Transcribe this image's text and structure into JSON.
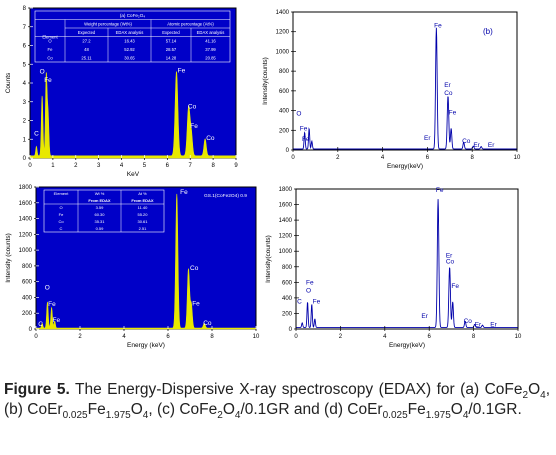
{
  "chart_data": [
    {
      "type": "area",
      "id": "a",
      "panel_label": "",
      "xlabel": "KeV",
      "ylabel": "Counts",
      "xlim": [
        0,
        9
      ],
      "ylim": [
        0,
        8
      ],
      "xticks": [
        "0",
        "1",
        "2",
        "3",
        "4",
        "5",
        "6",
        "7",
        "8",
        "9"
      ],
      "yticks": [
        "0",
        "1",
        "2",
        "3",
        "4",
        "5",
        "6",
        "7",
        "8"
      ],
      "background": "#0000c8",
      "fill_color": "#e8e800",
      "axis_color": "#ffffff",
      "peaks": [
        [
          0.28,
          0.5,
          0.03
        ],
        [
          0.53,
          3.2,
          0.035
        ],
        [
          0.71,
          4.3,
          0.035
        ],
        [
          0.79,
          2.2,
          0.035
        ],
        [
          6.4,
          4.5,
          0.06
        ],
        [
          6.93,
          2.6,
          0.06
        ],
        [
          7.05,
          1.1,
          0.05
        ],
        [
          7.65,
          0.9,
          0.05
        ]
      ],
      "baseline": 0.12,
      "peak_labels": [
        {
          "text": "C",
          "x": 0.18,
          "y": 1.2
        },
        {
          "text": "O",
          "x": 0.42,
          "y": 4.5
        },
        {
          "text": "Fe",
          "x": 0.62,
          "y": 4.05
        },
        {
          "text": "Fe",
          "x": 6.45,
          "y": 4.55
        },
        {
          "text": "Co",
          "x": 6.9,
          "y": 2.65
        },
        {
          "text": "Fe",
          "x": 7.0,
          "y": 1.6
        },
        {
          "text": "Co",
          "x": 7.7,
          "y": 0.95
        }
      ],
      "table": {
        "title": "(a) CoFe₂O₄",
        "groups": [
          "Weight percentage (Wt%)",
          "Atomic percentage (At%)"
        ],
        "headers": [
          "Element",
          "Expected",
          "EDAX analysis",
          "Expected",
          "EDAX analysis"
        ],
        "rows": [
          [
            "O",
            "27.2",
            "16.43",
            "57.14",
            "41.16"
          ],
          [
            "Fe",
            "48",
            "52.92",
            "28.57",
            "37.99"
          ],
          [
            "Co",
            "25.11",
            "30.65",
            "14.28",
            "20.85"
          ]
        ]
      }
    },
    {
      "type": "line",
      "id": "b",
      "panel_label": "(b)",
      "xlabel": "Energy(keV)",
      "ylabel": "Intensity(counts)",
      "xlim": [
        0,
        10
      ],
      "ylim": [
        0,
        1400
      ],
      "xticks": [
        "0",
        "2",
        "4",
        "6",
        "8",
        "10"
      ],
      "yticks": [
        "0",
        "200",
        "400",
        "600",
        "800",
        "1000",
        "1200",
        "1400"
      ],
      "background": "#ffffff",
      "line_color": "#0000aa",
      "peaks": [
        [
          0.52,
          170,
          0.025
        ],
        [
          0.72,
          210,
          0.025
        ],
        [
          0.84,
          80,
          0.025
        ],
        [
          6.4,
          1230,
          0.035
        ],
        [
          6.92,
          540,
          0.035
        ],
        [
          7.06,
          210,
          0.03
        ],
        [
          7.62,
          70,
          0.03
        ],
        [
          8.05,
          30,
          0.03
        ],
        [
          8.4,
          25,
          0.03
        ]
      ],
      "baseline": 10,
      "peak_labels": [
        {
          "text": "O",
          "x": 0.15,
          "y": 350
        },
        {
          "text": "Fe",
          "x": 0.3,
          "y": 200
        },
        {
          "text": "Fe",
          "x": 0.4,
          "y": 90
        },
        {
          "text": "Fe",
          "x": 6.3,
          "y": 1245
        },
        {
          "text": "Er",
          "x": 6.75,
          "y": 640
        },
        {
          "text": "Co",
          "x": 6.75,
          "y": 560
        },
        {
          "text": "Fe",
          "x": 6.95,
          "y": 360
        },
        {
          "text": "Er",
          "x": 5.85,
          "y": 100
        },
        {
          "text": "Co",
          "x": 7.55,
          "y": 70
        },
        {
          "text": "Er",
          "x": 8.05,
          "y": 30
        },
        {
          "text": "Er",
          "x": 8.7,
          "y": 30
        }
      ]
    },
    {
      "type": "area",
      "id": "c",
      "panel_label": "GS.1(CoFe2O4) 0.9",
      "xlabel": "Energy (keV)",
      "ylabel": "Intensity (counts)",
      "xlim": [
        0,
        10
      ],
      "ylim": [
        0,
        1800
      ],
      "xticks": [
        "0",
        "2",
        "4",
        "6",
        "8",
        "10"
      ],
      "yticks": [
        "0",
        "200",
        "400",
        "600",
        "800",
        "1000",
        "1200",
        "1400",
        "1600",
        "1800"
      ],
      "background": "#0000c8",
      "fill_color": "#e8e800",
      "axis_color": "#ffffff",
      "peaks": [
        [
          0.28,
          60,
          0.03
        ],
        [
          0.52,
          330,
          0.035
        ],
        [
          0.71,
          260,
          0.035
        ],
        [
          0.85,
          90,
          0.03
        ],
        [
          6.4,
          1700,
          0.05
        ],
        [
          6.93,
          750,
          0.05
        ],
        [
          7.06,
          300,
          0.045
        ],
        [
          7.65,
          60,
          0.045
        ]
      ],
      "baseline": 12,
      "peak_labels": [
        {
          "text": "C",
          "x": 0.1,
          "y": 40
        },
        {
          "text": "O",
          "x": 0.4,
          "y": 500
        },
        {
          "text": "Fe",
          "x": 0.55,
          "y": 290
        },
        {
          "text": "Fe",
          "x": 0.75,
          "y": 90
        },
        {
          "text": "Fe",
          "x": 6.55,
          "y": 1710
        },
        {
          "text": "Co",
          "x": 7.0,
          "y": 750
        },
        {
          "text": "Fe",
          "x": 7.1,
          "y": 300
        },
        {
          "text": "Co",
          "x": 7.6,
          "y": 50
        }
      ],
      "table": {
        "title": "",
        "groups": [
          "Wt %",
          "At %"
        ],
        "headers": [
          "Element",
          "From EDAX",
          "From EDAX"
        ],
        "rows": [
          [
            "O",
            "3.59",
            "11.40"
          ],
          [
            "Fe",
            "60.30",
            "55.20"
          ],
          [
            "Co",
            "35.31",
            "30.61"
          ],
          [
            "C",
            "0.59",
            "2.51"
          ]
        ]
      }
    },
    {
      "type": "line",
      "id": "d",
      "panel_label": "",
      "xlabel": "Energy(keV)",
      "ylabel": "Intensity(counts)",
      "xlim": [
        0,
        10
      ],
      "ylim": [
        0,
        1800
      ],
      "xticks": [
        "0",
        "2",
        "4",
        "6",
        "8",
        "10"
      ],
      "yticks": [
        "0",
        "200",
        "400",
        "600",
        "800",
        "1000",
        "1200",
        "1400",
        "1600",
        "1800"
      ],
      "background": "#ffffff",
      "line_color": "#0000aa",
      "peaks": [
        [
          0.28,
          60,
          0.025
        ],
        [
          0.52,
          330,
          0.025
        ],
        [
          0.71,
          300,
          0.025
        ],
        [
          0.85,
          110,
          0.025
        ],
        [
          6.4,
          1650,
          0.035
        ],
        [
          6.92,
          780,
          0.035
        ],
        [
          7.06,
          330,
          0.03
        ],
        [
          7.62,
          80,
          0.03
        ],
        [
          8.05,
          40,
          0.03
        ],
        [
          8.4,
          30,
          0.03
        ]
      ],
      "baseline": 20,
      "peak_labels": [
        {
          "text": "Fe",
          "x": 0.45,
          "y": 570
        },
        {
          "text": "O",
          "x": 0.45,
          "y": 470
        },
        {
          "text": "C",
          "x": 0.05,
          "y": 330
        },
        {
          "text": "Fe",
          "x": 0.75,
          "y": 330
        },
        {
          "text": "Fe",
          "x": 6.3,
          "y": 1760
        },
        {
          "text": "Er",
          "x": 6.75,
          "y": 920
        },
        {
          "text": "Co",
          "x": 6.75,
          "y": 840
        },
        {
          "text": "Fe",
          "x": 7.0,
          "y": 530
        },
        {
          "text": "Er",
          "x": 5.65,
          "y": 140
        },
        {
          "text": "Co",
          "x": 7.55,
          "y": 80
        },
        {
          "text": "Er",
          "x": 8.05,
          "y": 30
        },
        {
          "text": "Er",
          "x": 8.75,
          "y": 30
        }
      ]
    }
  ],
  "caption": {
    "label": "Figure 5.",
    "text_before": " The Energy-Dispersive X-ray spectroscopy (EDAX) for (a) CoFe",
    "sub1": "2",
    "t2": "O",
    "sub2": "4",
    "t3": ", (b) CoEr",
    "sub3": "0.025",
    "t4": "Fe",
    "sub4": "1.975",
    "t5": "O",
    "sub5": "4",
    "t6": ", (c) CoFe",
    "sub6": "2",
    "t7": "O",
    "sub7": "4",
    "t8": "/0.1GR and (d) CoEr",
    "sub8": "0.025",
    "t9": "Fe",
    "sub9": "1.975",
    "t10": "O",
    "sub10": "4",
    "t11": "/0.1GR."
  }
}
